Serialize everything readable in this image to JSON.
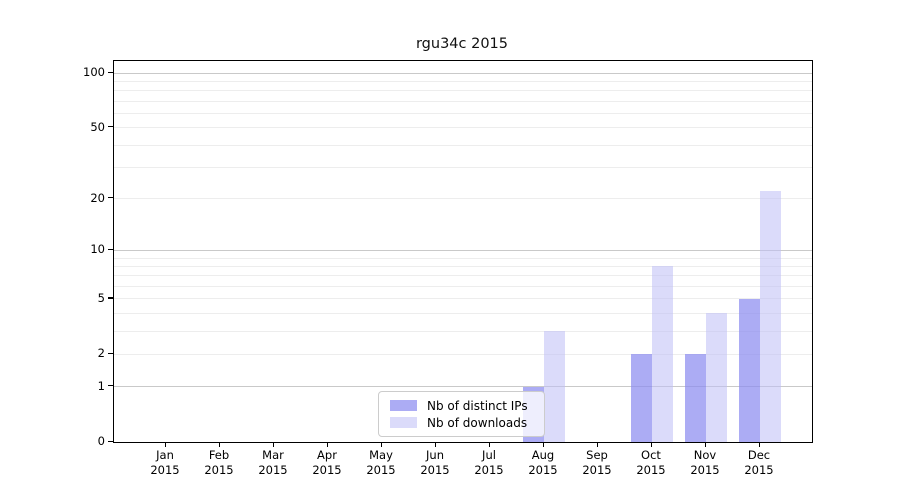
{
  "title": "rgu34c 2015",
  "colors": {
    "ips_bar": "#8c8cf0",
    "ips_bar_opacity": 0.72,
    "downloads_bar": "#bebef6",
    "downloads_bar_opacity": 0.55,
    "grid_major": "#c9c9c9",
    "grid_minor": "#ededed",
    "axis": "#000000",
    "legend_border": "#cccccc"
  },
  "legend": {
    "items": [
      {
        "label": "Nb of distinct IPs",
        "series_key": "ips"
      },
      {
        "label": "Nb of downloads",
        "series_key": "downloads"
      }
    ]
  },
  "chart_data": {
    "type": "bar",
    "title": "rgu34c 2015",
    "categories": [
      "Jan",
      "Feb",
      "Mar",
      "Apr",
      "May",
      "Jun",
      "Jul",
      "Aug",
      "Sep",
      "Oct",
      "Nov",
      "Dec"
    ],
    "category_year": "2015",
    "series": [
      {
        "name": "Nb of distinct IPs",
        "key": "ips",
        "values": [
          0,
          0,
          0,
          0,
          0,
          0,
          0,
          1,
          0,
          2,
          2,
          5
        ]
      },
      {
        "name": "Nb of downloads",
        "key": "downloads",
        "values": [
          0,
          0,
          0,
          0,
          0,
          0,
          0,
          3,
          0,
          8,
          4,
          22
        ]
      }
    ],
    "y_scale": "log10(1+y)",
    "y_ticks": [
      0,
      1,
      2,
      5,
      10,
      20,
      50,
      100
    ],
    "major_grid": [
      1,
      10,
      100
    ],
    "minor_grid": [
      2,
      3,
      4,
      5,
      6,
      7,
      8,
      9,
      20,
      30,
      40,
      50,
      60,
      70,
      80,
      90
    ],
    "ylim": [
      0,
      120
    ],
    "grid": true,
    "legend_position": "lower center"
  }
}
